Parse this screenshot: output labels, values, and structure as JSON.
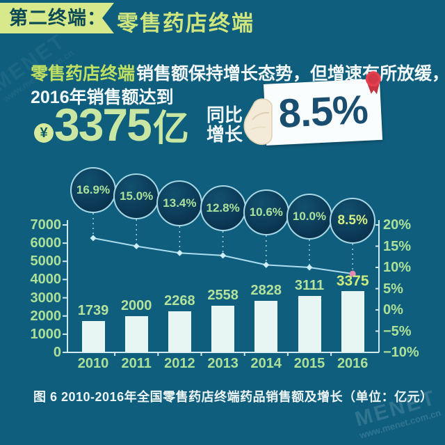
{
  "header": {
    "badge": "第二终端：",
    "title": "零售药店终端"
  },
  "intro": {
    "highlight": "零售药店终端",
    "line1_rest": "销售额保持增长态势，但增速有所放缓，",
    "line2": "2016年销售额达到",
    "currency_symbol": "¥",
    "amount": "3375",
    "amount_unit": "亿",
    "yoy_line1": "同比",
    "yoy_line2": "增长",
    "growth_value": "8.5%"
  },
  "chart_data": {
    "type": "bar+line combo",
    "title": "2010-2016年全国零售药店终端药品销售额及增长",
    "unit": "亿元",
    "categories": [
      "2010",
      "2011",
      "2012",
      "2013",
      "2014",
      "2015",
      "2016"
    ],
    "series": [
      {
        "name": "销售额(亿元)",
        "type": "bar",
        "values": [
          1739,
          2000,
          2268,
          2558,
          2828,
          3111,
          3375
        ]
      },
      {
        "name": "同比增长(%)",
        "type": "line",
        "values": [
          16.9,
          15.0,
          13.4,
          12.8,
          10.6,
          10.0,
          8.5
        ]
      }
    ],
    "bubble_labels": [
      "16.9%",
      "15.0%",
      "13.4%",
      "12.8%",
      "10.6%",
      "10.0%",
      "8.5%"
    ],
    "left_axis": {
      "ticks": [
        "7000",
        "6000",
        "5000",
        "4000",
        "3000",
        "2000",
        "1000",
        "0"
      ],
      "min": 0,
      "max": 7000
    },
    "right_axis": {
      "ticks": [
        "20%",
        "15%",
        "10%",
        "5%",
        "0%",
        "−5%",
        "−10%"
      ],
      "min": -10,
      "max": 20
    },
    "grid": "off",
    "legend": "none"
  },
  "caption": "图 6  2010-2016年全国零售药店终端药品销售额及增长（单位：亿元）",
  "watermark": {
    "name": "MENET",
    "url": "www.menet.com.cn"
  },
  "colors": {
    "background": "#0f5e7d",
    "banner_bg": "#d8e98c",
    "banner_text": "#0c4a54",
    "title_text": "#cfe57d",
    "highlight_text": "#c0e061",
    "body_text": "#f2f8f8",
    "big_number": "#c9e7a2",
    "card_bg": "#fafdfd",
    "card_text": "#1a4e71",
    "rosette_red": "#e6404f",
    "hand": "#f3ead7",
    "bar_fill": "#e7f6f2",
    "axis_line": "#cfe9ef",
    "tick_text": "#ace098",
    "trend_line": "#aadded",
    "marker": "#cdeef7",
    "last_marker_pink": "#e489b4",
    "bubble_border": "#a6d7e4",
    "bubble_text": "#abe09c",
    "bubble_last_text": "#d7ee82"
  }
}
